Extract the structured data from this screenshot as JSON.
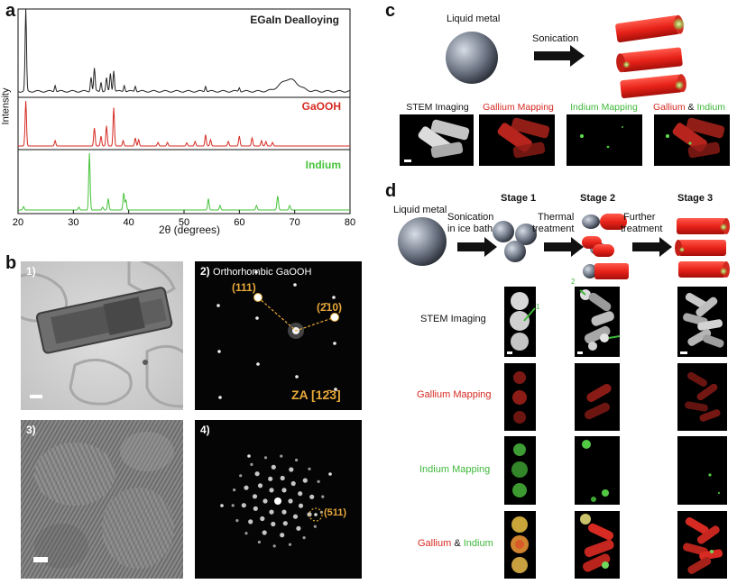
{
  "panels": {
    "a": "a",
    "b": "b",
    "c": "c",
    "d": "d"
  },
  "panel_a": {
    "series": [
      {
        "name": "EGaIn Dealloying",
        "color": "#222222"
      },
      {
        "name": "GaOOH",
        "color": "#d62a22"
      },
      {
        "name": "Indium",
        "color": "#46c23a"
      }
    ],
    "ylabel": "Intensity",
    "xlabel": "2θ (degrees)",
    "xticks": [
      "20",
      "30",
      "40",
      "50",
      "60",
      "70",
      "80"
    ],
    "xlim": [
      20,
      80
    ]
  },
  "chart_data": {
    "type": "line",
    "xlabel": "2θ (degrees)",
    "ylabel": "Intensity",
    "xlim": [
      20,
      80
    ],
    "series": [
      {
        "name": "EGaIn Dealloying",
        "peaks": [
          [
            21.4,
            1.0
          ],
          [
            26.7,
            0.08
          ],
          [
            33.2,
            0.18
          ],
          [
            33.8,
            0.28
          ],
          [
            35.0,
            0.12
          ],
          [
            36.0,
            0.16
          ],
          [
            36.7,
            0.22
          ],
          [
            37.3,
            0.26
          ],
          [
            39.2,
            0.08
          ],
          [
            41.2,
            0.07
          ],
          [
            53.9,
            0.07
          ],
          [
            60.0,
            0.05
          ],
          [
            69.0,
            0.15
          ]
        ]
      },
      {
        "name": "GaOOH",
        "peaks": [
          [
            21.4,
            1.0
          ],
          [
            26.7,
            0.12
          ],
          [
            33.8,
            0.4
          ],
          [
            35.0,
            0.22
          ],
          [
            36.0,
            0.45
          ],
          [
            37.3,
            0.85
          ],
          [
            39.0,
            0.12
          ],
          [
            41.2,
            0.18
          ],
          [
            41.8,
            0.14
          ],
          [
            45.3,
            0.08
          ],
          [
            47.0,
            0.08
          ],
          [
            50.5,
            0.07
          ],
          [
            52.0,
            0.1
          ],
          [
            53.9,
            0.25
          ],
          [
            54.8,
            0.14
          ],
          [
            58.0,
            0.1
          ],
          [
            60.0,
            0.22
          ],
          [
            62.3,
            0.18
          ],
          [
            64.0,
            0.12
          ],
          [
            64.8,
            0.1
          ],
          [
            66.0,
            0.08
          ]
        ]
      },
      {
        "name": "Indium",
        "peaks": [
          [
            21.0,
            0.06
          ],
          [
            31.0,
            0.05
          ],
          [
            32.9,
            1.0
          ],
          [
            35.3,
            0.05
          ],
          [
            36.3,
            0.2
          ],
          [
            39.1,
            0.3
          ],
          [
            39.5,
            0.18
          ],
          [
            54.4,
            0.2
          ],
          [
            56.5,
            0.08
          ],
          [
            63.1,
            0.08
          ],
          [
            66.9,
            0.16
          ],
          [
            67.0,
            0.1
          ],
          [
            69.1,
            0.08
          ]
        ]
      }
    ]
  },
  "panel_b": {
    "labels": [
      "1)",
      "2)",
      "3)",
      "4)"
    ],
    "saed_title": "Orthorhombic GaOOH",
    "spot1": "(111)",
    "spot2": "(2̄10)",
    "zone_axis": "ZA [12̄3]",
    "fft_spot": "(511)"
  },
  "panel_c": {
    "liquid_metal": "Liquid metal",
    "sonication": "Sonication",
    "tiles": [
      "STEM Imaging",
      "Gallium Mapping",
      "Indium Mapping"
    ],
    "tile4_a": "Gallium",
    "tile4_amp": " & ",
    "tile4_b": "Indium"
  },
  "panel_d": {
    "liquid_metal": "Liquid metal",
    "step1_l1": "Sonication",
    "step1_l2": "in ice bath",
    "step2_l1": "Thermal",
    "step2_l2": "treatment",
    "step3_l1": "Further",
    "step3_l2": "treatment",
    "stages": [
      "Stage 1",
      "Stage 2",
      "Stage 3"
    ],
    "rows": [
      "STEM Imaging",
      "Gallium Mapping",
      "Indium Mapping"
    ],
    "row4_a": "Gallium",
    "row4_amp": " & ",
    "row4_b": "Indium",
    "marker1": "1",
    "marker2": "2"
  }
}
